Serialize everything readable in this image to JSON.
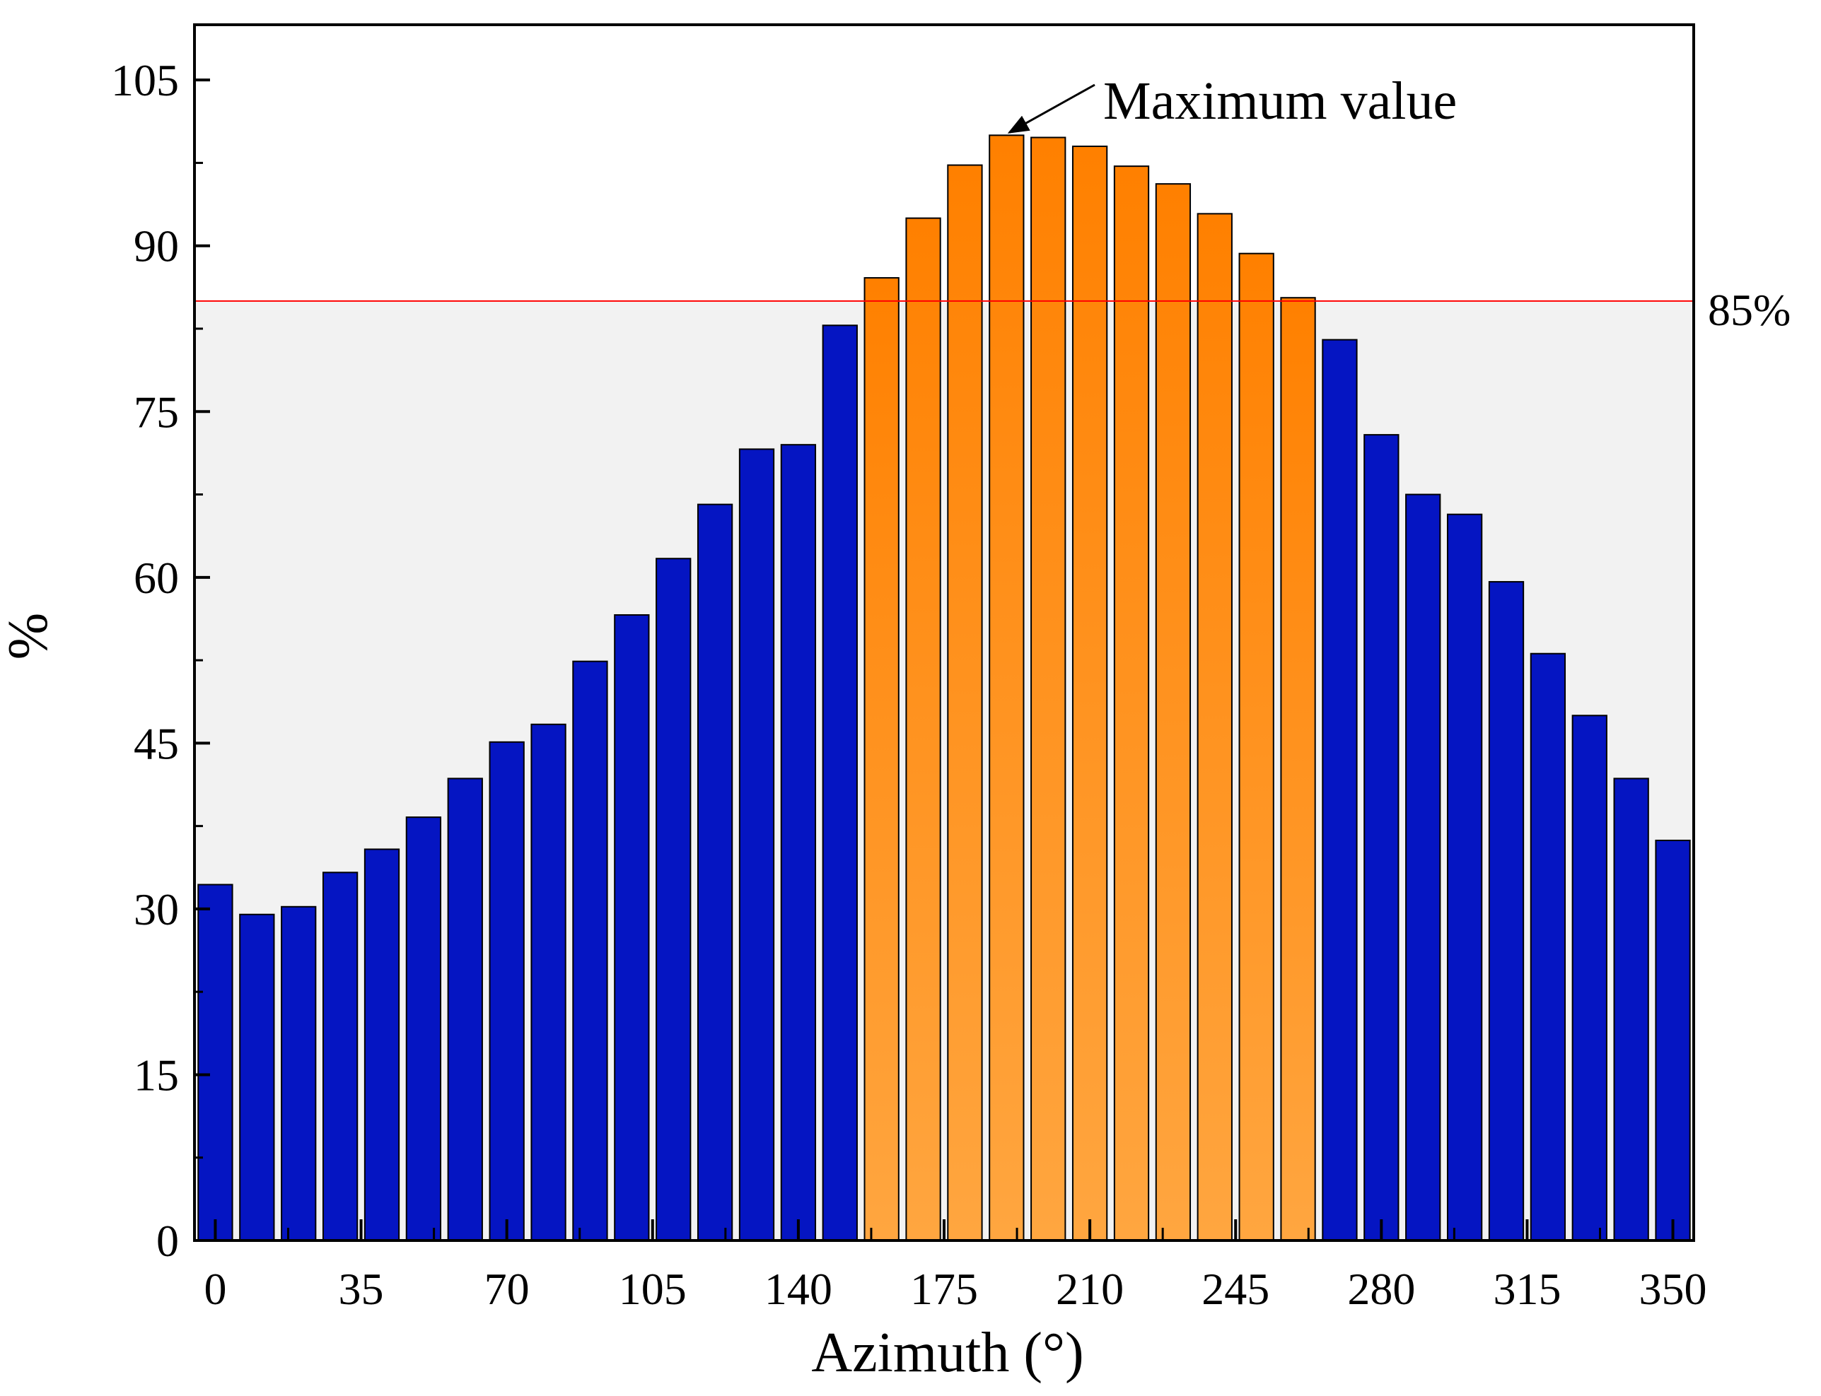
{
  "chart_data": {
    "type": "bar",
    "title": "",
    "xlabel": "Azimuth (°)",
    "ylabel": "%",
    "ylim": [
      0,
      110
    ],
    "xlim": [
      -5,
      355
    ],
    "grid": false,
    "x": [
      0,
      10,
      20,
      30,
      40,
      50,
      60,
      70,
      80,
      90,
      100,
      110,
      120,
      130,
      140,
      150,
      160,
      170,
      180,
      190,
      200,
      210,
      220,
      230,
      240,
      250,
      260,
      270,
      280,
      290,
      300,
      310,
      320,
      330,
      340,
      350
    ],
    "values": [
      32.2,
      29.5,
      30.2,
      33.3,
      35.4,
      38.3,
      41.8,
      45.1,
      46.7,
      52.4,
      56.6,
      61.7,
      66.6,
      71.6,
      72.0,
      82.8,
      87.1,
      92.5,
      97.3,
      100.0,
      99.8,
      99.0,
      97.2,
      95.6,
      92.9,
      89.3,
      85.3,
      81.5,
      72.9,
      67.5,
      65.7,
      59.6,
      53.1,
      47.5,
      41.8,
      36.2
    ],
    "highlight_threshold": 85,
    "colors": {
      "below_threshold": "#0515c2",
      "above_threshold": "#ff8a00",
      "reference_line": "#ff0000",
      "shaded_region": "#f2f2f2"
    },
    "x_ticks": [
      0,
      35,
      70,
      105,
      140,
      175,
      210,
      245,
      280,
      315,
      350
    ],
    "x_tick_labels": [
      "0",
      "35",
      "70",
      "105",
      "140",
      "175",
      "210",
      "245",
      "280",
      "315",
      "350"
    ],
    "y_ticks": [
      0,
      15,
      30,
      45,
      60,
      75,
      90,
      105
    ],
    "y_tick_labels": [
      "0",
      "15",
      "30",
      "45",
      "60",
      "75",
      "90",
      "105"
    ],
    "reference_line": {
      "value": 85,
      "label": "85%"
    },
    "annotation": {
      "text": "Maximum value",
      "target_x": 190,
      "target_y": 100
    }
  }
}
